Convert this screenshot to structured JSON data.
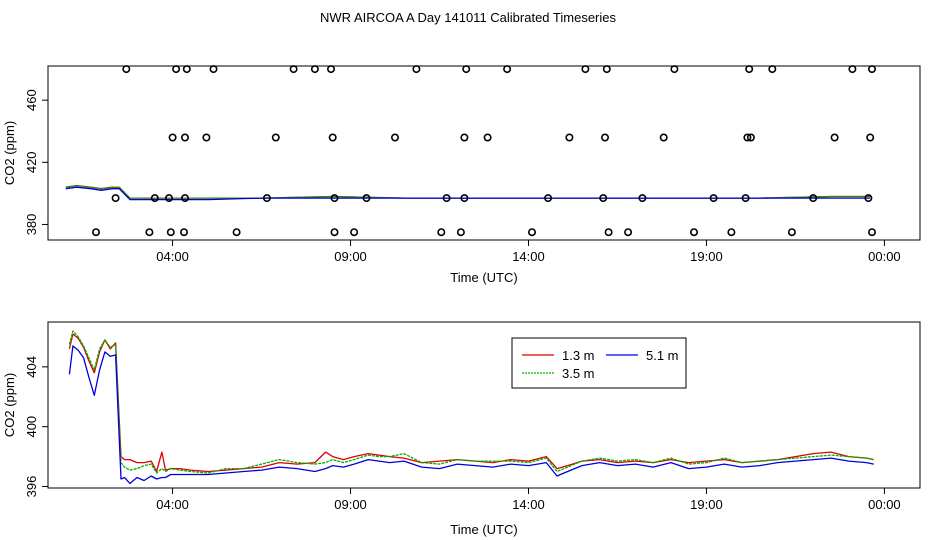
{
  "title": "NWR AIRCOA A  Day 141011  Calibrated Timeseries",
  "colors": {
    "s13": "#e00000",
    "s35": "#00b000",
    "s51": "#0000e0",
    "axis": "#000000",
    "marker": "#000000"
  },
  "chart_data": [
    {
      "type": "scatter",
      "name": "top-panel",
      "xlabel": "Time (UTC)",
      "ylabel": "CO2 (ppm)",
      "xlim": [
        0,
        24.5
      ],
      "ylim": [
        370,
        482
      ],
      "x_ticks": [
        3.5,
        8.5,
        13.5,
        18.5,
        23.5
      ],
      "x_tick_labels": [
        "04:00",
        "09:00",
        "14:00",
        "19:00",
        "00:00"
      ],
      "y_ticks": [
        380,
        420,
        460
      ],
      "y_tick_labels": [
        "380",
        "420",
        "460"
      ],
      "markers": {
        "name": "check values",
        "x": [
          1.35,
          1.9,
          2.2,
          2.85,
          3.0,
          3.4,
          3.45,
          3.5,
          3.6,
          3.82,
          3.85,
          3.85,
          3.9,
          4.45,
          4.65,
          5.3,
          6.15,
          6.4,
          6.9,
          7.5,
          7.95,
          8.0,
          8.05,
          8.05,
          8.6,
          8.95,
          9.75,
          10.35,
          11.05,
          11.2,
          11.6,
          11.7,
          11.7,
          11.75,
          12.35,
          12.9,
          13.6,
          14.05,
          14.65,
          15.1,
          15.6,
          15.65,
          15.7,
          15.75,
          16.3,
          16.7,
          17.3,
          17.6,
          18.15,
          18.7,
          19.2,
          19.6,
          19.65,
          19.7,
          19.75,
          20.35,
          20.9,
          21.5,
          22.1,
          22.6,
          23.05,
          23.1,
          23.15,
          23.15
        ],
        "y": [
          375,
          397,
          480,
          375,
          397,
          397,
          375,
          436,
          480,
          375,
          397,
          436,
          480,
          436,
          480,
          375,
          397,
          436,
          480,
          480,
          480,
          436,
          397,
          375,
          375,
          397,
          436,
          480,
          375,
          397,
          375,
          397,
          436,
          480,
          436,
          480,
          375,
          397,
          436,
          480,
          397,
          436,
          480,
          375,
          375,
          397,
          436,
          480,
          375,
          397,
          375,
          397,
          436,
          480,
          436,
          480,
          375,
          397,
          436,
          480,
          397,
          436,
          480,
          375
        ]
      },
      "series": [
        {
          "name": "1.3 m",
          "color": "#e00000",
          "x": [
            0.5,
            0.8,
            1.2,
            1.5,
            1.8,
            2.0,
            2.3,
            2.5,
            3.0,
            3.5,
            4.5,
            6.0,
            8.0,
            10.0,
            12.0,
            14.0,
            16.0,
            18.0,
            20.0,
            22.0,
            23.1
          ],
          "values": [
            404,
            405,
            404,
            403,
            404,
            404,
            397,
            397,
            397,
            397,
            397,
            397,
            398,
            397,
            397,
            397,
            397,
            397,
            397,
            398,
            398
          ]
        },
        {
          "name": "3.5 m",
          "color": "#00b000",
          "x": [
            0.5,
            0.8,
            1.2,
            1.5,
            1.8,
            2.0,
            2.3,
            2.5,
            3.0,
            3.5,
            4.5,
            6.0,
            8.0,
            10.0,
            12.0,
            14.0,
            16.0,
            18.0,
            20.0,
            22.0,
            23.1
          ],
          "values": [
            404,
            405,
            404,
            403,
            404,
            404,
            397,
            397,
            397,
            397,
            397,
            397,
            398,
            397,
            397,
            397,
            397,
            397,
            397,
            398,
            398
          ]
        },
        {
          "name": "5.1 m",
          "color": "#0000e0",
          "x": [
            0.5,
            0.8,
            1.2,
            1.5,
            1.8,
            2.0,
            2.3,
            2.5,
            3.0,
            3.5,
            4.5,
            6.0,
            8.0,
            10.0,
            12.0,
            14.0,
            16.0,
            18.0,
            20.0,
            22.0,
            23.1
          ],
          "values": [
            403,
            404,
            403,
            402,
            403,
            403,
            396,
            396,
            396,
            396,
            396,
            397,
            397,
            397,
            397,
            397,
            397,
            397,
            397,
            397,
            397
          ]
        }
      ]
    },
    {
      "type": "line",
      "name": "bottom-panel",
      "xlabel": "Time (UTC)",
      "ylabel": "CO2 (ppm)",
      "xlim": [
        0,
        24.5
      ],
      "ylim": [
        395.9,
        407
      ],
      "x_ticks": [
        3.5,
        8.5,
        13.5,
        18.5,
        23.5
      ],
      "x_tick_labels": [
        "04:00",
        "09:00",
        "14:00",
        "19:00",
        "00:00"
      ],
      "y_ticks": [
        396,
        400,
        404
      ],
      "y_tick_labels": [
        "396",
        "400",
        "404"
      ],
      "legend": {
        "position": "top-center",
        "entries": [
          "1.3 m",
          "5.1 m",
          "3.5 m"
        ]
      },
      "series": [
        {
          "name": "1.3 m",
          "color": "#e00000",
          "x": [
            0.6,
            0.7,
            0.85,
            1.0,
            1.15,
            1.3,
            1.45,
            1.6,
            1.75,
            1.9,
            2.05,
            2.15,
            2.3,
            2.5,
            2.7,
            2.9,
            3.05,
            3.2,
            3.3,
            3.45,
            3.7,
            4.0,
            4.5,
            5.0,
            5.5,
            6.0,
            6.5,
            7.0,
            7.5,
            7.8,
            8.0,
            8.3,
            8.6,
            9.0,
            9.3,
            9.6,
            10.0,
            10.5,
            11.0,
            11.5,
            12.0,
            12.5,
            13.0,
            13.5,
            14.0,
            14.3,
            14.6,
            15.0,
            15.5,
            16.0,
            16.5,
            17.0,
            17.5,
            18.0,
            18.5,
            19.0,
            19.5,
            20.0,
            20.5,
            21.0,
            21.5,
            22.0,
            22.5,
            23.0,
            23.2
          ],
          "values": [
            405.2,
            406.2,
            405.9,
            405.3,
            404.4,
            403.6,
            405.0,
            405.8,
            405.2,
            405.6,
            398.0,
            397.8,
            397.8,
            397.6,
            397.6,
            397.7,
            397.0,
            398.3,
            397.1,
            397.2,
            397.2,
            397.1,
            397.0,
            397.1,
            397.2,
            397.3,
            397.6,
            397.5,
            397.6,
            398.3,
            398.0,
            397.8,
            398.0,
            398.2,
            398.1,
            398.0,
            397.9,
            397.6,
            397.7,
            397.8,
            397.7,
            397.6,
            397.8,
            397.7,
            398.0,
            397.2,
            397.4,
            397.7,
            397.8,
            397.6,
            397.7,
            397.6,
            397.8,
            397.6,
            397.7,
            397.8,
            397.6,
            397.7,
            397.8,
            398.0,
            398.2,
            398.3,
            398.0,
            397.9,
            397.8
          ]
        },
        {
          "name": "3.5 m",
          "color": "#00b000",
          "x": [
            0.6,
            0.7,
            0.85,
            1.0,
            1.15,
            1.3,
            1.45,
            1.6,
            1.75,
            1.9,
            2.05,
            2.15,
            2.3,
            2.5,
            2.7,
            2.9,
            3.05,
            3.2,
            3.3,
            3.45,
            3.7,
            4.0,
            4.5,
            5.0,
            5.5,
            6.0,
            6.5,
            7.0,
            7.5,
            7.8,
            8.0,
            8.3,
            8.6,
            9.0,
            9.3,
            9.6,
            10.0,
            10.5,
            11.0,
            11.5,
            12.0,
            12.5,
            13.0,
            13.5,
            14.0,
            14.3,
            14.6,
            15.0,
            15.5,
            16.0,
            16.5,
            17.0,
            17.5,
            18.0,
            18.5,
            19.0,
            19.5,
            20.0,
            20.5,
            21.0,
            21.5,
            22.0,
            22.5,
            23.0,
            23.2
          ],
          "values": [
            405.5,
            406.4,
            406.0,
            405.4,
            404.6,
            403.8,
            405.2,
            405.8,
            405.3,
            405.5,
            397.6,
            397.3,
            397.1,
            397.2,
            397.4,
            397.5,
            396.9,
            397.2,
            397.0,
            397.2,
            397.1,
            397.0,
            396.9,
            397.2,
            397.2,
            397.5,
            397.8,
            397.6,
            397.5,
            397.6,
            397.8,
            397.6,
            397.8,
            398.1,
            398.0,
            398.0,
            398.2,
            397.6,
            397.5,
            397.8,
            397.7,
            397.7,
            397.7,
            397.6,
            397.9,
            397.0,
            397.3,
            397.7,
            397.9,
            397.7,
            397.8,
            397.6,
            397.9,
            397.5,
            397.6,
            397.9,
            397.6,
            397.7,
            397.8,
            397.9,
            398.0,
            398.1,
            398.0,
            397.9,
            397.8
          ]
        },
        {
          "name": "5.1 m",
          "color": "#0000e0",
          "x": [
            0.6,
            0.7,
            0.85,
            1.0,
            1.15,
            1.3,
            1.45,
            1.6,
            1.75,
            1.9,
            2.05,
            2.15,
            2.3,
            2.5,
            2.7,
            2.9,
            3.05,
            3.2,
            3.3,
            3.45,
            3.7,
            4.0,
            4.5,
            5.0,
            5.5,
            6.0,
            6.5,
            7.0,
            7.5,
            7.8,
            8.0,
            8.3,
            8.6,
            9.0,
            9.3,
            9.6,
            10.0,
            10.5,
            11.0,
            11.5,
            12.0,
            12.5,
            13.0,
            13.5,
            14.0,
            14.3,
            14.6,
            15.0,
            15.5,
            16.0,
            16.5,
            17.0,
            17.5,
            18.0,
            18.5,
            19.0,
            19.5,
            20.0,
            20.5,
            21.0,
            21.5,
            22.0,
            22.5,
            23.0,
            23.2
          ],
          "values": [
            403.5,
            405.4,
            405.1,
            404.6,
            403.3,
            402.1,
            403.8,
            405.0,
            404.7,
            404.8,
            396.5,
            396.6,
            396.2,
            396.6,
            396.4,
            396.7,
            396.5,
            396.6,
            396.6,
            396.8,
            396.8,
            396.8,
            396.8,
            396.9,
            397.0,
            397.1,
            397.3,
            397.2,
            397.0,
            397.2,
            397.4,
            397.3,
            397.5,
            397.8,
            397.7,
            397.6,
            397.7,
            397.3,
            397.2,
            397.5,
            397.4,
            397.3,
            397.5,
            397.4,
            397.6,
            396.7,
            397.0,
            397.4,
            397.6,
            397.4,
            397.5,
            397.3,
            397.6,
            397.2,
            397.3,
            397.5,
            397.3,
            397.4,
            397.6,
            397.7,
            397.8,
            397.9,
            397.7,
            397.6,
            397.5
          ]
        }
      ]
    }
  ]
}
